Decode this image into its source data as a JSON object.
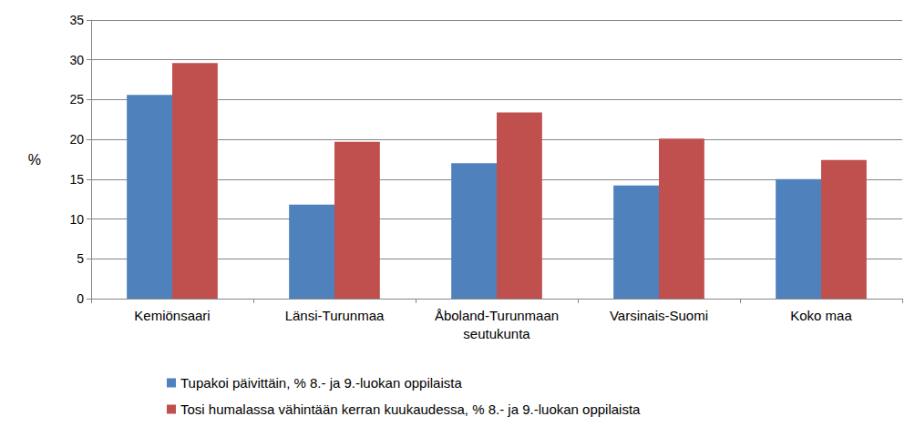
{
  "chart_data": {
    "type": "bar",
    "ylabel": "%",
    "categories": [
      "Kemiönsaari",
      "Länsi-Turunmaa",
      "Åboland-Turunmaan\nseutukunta",
      "Varsinais-Suomi",
      "Koko maa"
    ],
    "series": [
      {
        "name": "Tupakoi päivittäin, % 8.- ja 9.-luokan oppilaista",
        "color": "#4f81bd",
        "values": [
          25.6,
          11.8,
          17.0,
          14.2,
          15.0
        ]
      },
      {
        "name": "Tosi humalassa vähintään kerran kuukaudessa, % 8.- ja 9.-luokan oppilaista",
        "color": "#c0504d",
        "values": [
          29.6,
          19.7,
          23.4,
          20.1,
          17.4
        ]
      }
    ],
    "ylim": [
      0,
      35
    ],
    "yticks": [
      0,
      5,
      10,
      15,
      20,
      25,
      30,
      35
    ],
    "grid": true,
    "legend": "bottom"
  }
}
